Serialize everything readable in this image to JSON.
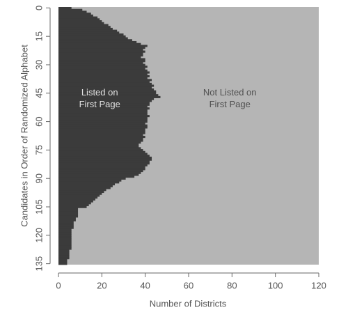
{
  "chart_data": {
    "type": "horizontal-area",
    "xlabel": "Number of Districts",
    "ylabel": "Candidates in Order of Randomized Alphabet",
    "y": [
      0,
      1,
      2,
      3,
      4,
      5,
      6,
      7,
      8,
      9,
      10,
      11,
      12,
      13,
      14,
      15,
      16,
      17,
      18,
      19,
      20,
      21,
      22,
      23,
      24,
      25,
      26,
      27,
      28,
      29,
      30,
      31,
      32,
      33,
      34,
      35,
      36,
      37,
      38,
      39,
      40,
      41,
      42,
      43,
      44,
      45,
      46,
      47,
      48,
      49,
      50,
      51,
      52,
      53,
      54,
      55,
      56,
      57,
      58,
      59,
      60,
      61,
      62,
      63,
      64,
      65,
      66,
      67,
      68,
      69,
      70,
      71,
      72,
      73,
      74,
      75,
      76,
      77,
      78,
      79,
      80,
      81,
      82,
      83,
      84,
      85,
      86,
      87,
      88,
      89,
      90,
      91,
      92,
      93,
      94,
      95,
      96,
      97,
      98,
      99,
      100,
      101,
      102,
      103,
      104,
      105,
      106,
      107,
      108,
      109,
      110,
      111,
      112,
      113,
      114,
      115,
      116,
      117,
      118,
      119,
      120,
      121,
      122,
      123,
      124,
      125,
      126,
      127,
      128,
      129,
      130,
      131,
      132,
      133,
      134,
      135
    ],
    "values": [
      6,
      11,
      13,
      15,
      16,
      18,
      19,
      20,
      21,
      23,
      24,
      25,
      27,
      28,
      30,
      31,
      32,
      34,
      36,
      38,
      41,
      40,
      39,
      40,
      39,
      39,
      38,
      40,
      40,
      39,
      40,
      41,
      40,
      41,
      42,
      41,
      42,
      41,
      43,
      42,
      43,
      44,
      43,
      44,
      45,
      45,
      46,
      47,
      44,
      43,
      42,
      42,
      41,
      42,
      41,
      41,
      41,
      42,
      41,
      41,
      41,
      40,
      41,
      41,
      40,
      40,
      40,
      39,
      40,
      39,
      39,
      38,
      37,
      37,
      38,
      39,
      40,
      41,
      42,
      43,
      43,
      42,
      42,
      41,
      40,
      40,
      39,
      38,
      37,
      35,
      31,
      29,
      28,
      26,
      25,
      24,
      22,
      21,
      20,
      19,
      18,
      17,
      16,
      15,
      14,
      13,
      9,
      9,
      9,
      9,
      9,
      8,
      8,
      7,
      7,
      7,
      7,
      6,
      6,
      6,
      6,
      6,
      6,
      6,
      6,
      6,
      6,
      6,
      5,
      5,
      5,
      5,
      5,
      4,
      4,
      4
    ],
    "color": "#3b3b3b",
    "background": "#b5b5b5",
    "xlim": [
      0,
      120
    ],
    "xticks": [
      0,
      20,
      40,
      60,
      80,
      100,
      120
    ],
    "ylim": [
      -0.5,
      135.5
    ],
    "yticks": [
      0,
      15,
      30,
      45,
      60,
      75,
      90,
      105,
      120,
      135
    ],
    "y_inverted": true,
    "annotations": [
      {
        "lines": [
          "Listed on",
          "First Page"
        ],
        "x": 19,
        "y": 48,
        "color": "#e0e0e0"
      },
      {
        "lines": [
          "Not Listed on",
          "First Page"
        ],
        "x": 79,
        "y": 48,
        "color": "#505050"
      }
    ]
  }
}
